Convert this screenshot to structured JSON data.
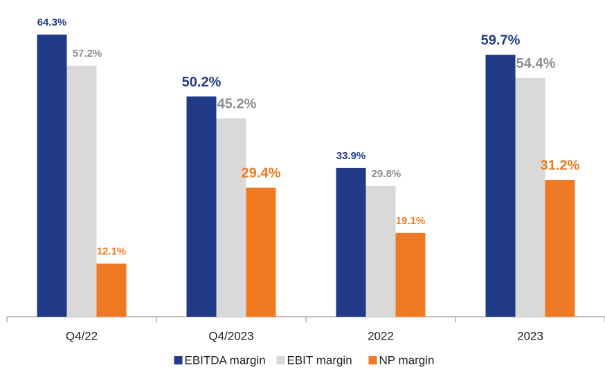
{
  "chart_data": {
    "type": "bar",
    "categories": [
      "Q4/22",
      "Q4/2023",
      "2022",
      "2023"
    ],
    "series": [
      {
        "name": "EBITDA margin",
        "color": "#203a87",
        "label_color": "#203a87",
        "values": [
          64.3,
          50.2,
          33.9,
          59.7
        ],
        "value_labels": [
          "64.3%",
          "50.2%",
          "33.9%",
          "59.7%"
        ]
      },
      {
        "name": "EBIT margin",
        "color": "#d9d9d9",
        "label_color": "#8c8c8c",
        "values": [
          57.2,
          45.2,
          29.8,
          54.4
        ],
        "value_labels": [
          "57.2%",
          "45.2%",
          "29.8%",
          "54.4%"
        ]
      },
      {
        "name": "NP margin",
        "color": "#f07a23",
        "label_color": "#f07a23",
        "values": [
          12.1,
          29.4,
          19.1,
          31.2
        ],
        "value_labels": [
          "12.1%",
          "29.4%",
          "19.1%",
          "31.2%"
        ]
      }
    ]
  }
}
